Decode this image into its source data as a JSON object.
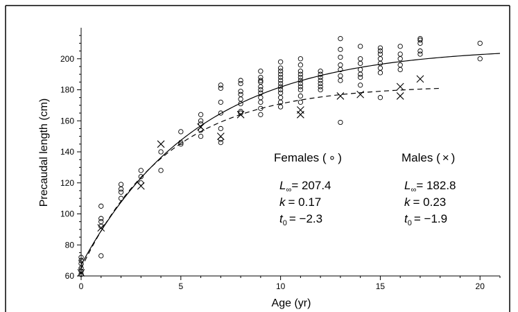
{
  "chart_data": {
    "type": "scatter",
    "xlabel": "Age (yr)",
    "ylabel": "Precaudal length (cm)",
    "xlim": [
      0,
      21
    ],
    "ylim": [
      60,
      220
    ],
    "x_ticks": [
      "0",
      "5",
      "10",
      "15",
      "20"
    ],
    "y_ticks": [
      "60",
      "80",
      "100",
      "120",
      "140",
      "160",
      "180",
      "200"
    ],
    "grid": false,
    "series": [
      {
        "name": "Females",
        "marker": "circle",
        "points": [
          [
            0,
            61
          ],
          [
            0,
            63
          ],
          [
            0,
            65
          ],
          [
            0,
            68
          ],
          [
            0,
            70
          ],
          [
            0,
            72
          ],
          [
            1,
            73
          ],
          [
            1,
            92
          ],
          [
            1,
            95
          ],
          [
            1,
            97
          ],
          [
            1,
            105
          ],
          [
            2,
            110
          ],
          [
            2,
            114
          ],
          [
            2,
            116
          ],
          [
            2,
            119
          ],
          [
            3,
            120
          ],
          [
            3,
            124
          ],
          [
            3,
            128
          ],
          [
            4,
            128
          ],
          [
            4,
            140
          ],
          [
            5,
            145
          ],
          [
            5,
            146
          ],
          [
            5,
            153
          ],
          [
            6,
            150
          ],
          [
            6,
            154
          ],
          [
            6,
            158
          ],
          [
            6,
            160
          ],
          [
            6,
            164
          ],
          [
            7,
            146
          ],
          [
            7,
            148
          ],
          [
            7,
            155
          ],
          [
            7,
            165
          ],
          [
            7,
            172
          ],
          [
            7,
            181
          ],
          [
            7,
            183
          ],
          [
            8,
            165
          ],
          [
            8,
            166
          ],
          [
            8,
            171
          ],
          [
            8,
            174
          ],
          [
            8,
            177
          ],
          [
            8,
            179
          ],
          [
            8,
            184
          ],
          [
            8,
            186
          ],
          [
            9,
            164
          ],
          [
            9,
            168
          ],
          [
            9,
            172
          ],
          [
            9,
            175
          ],
          [
            9,
            178
          ],
          [
            9,
            180
          ],
          [
            9,
            182
          ],
          [
            9,
            185
          ],
          [
            9,
            186
          ],
          [
            9,
            188
          ],
          [
            9,
            192
          ],
          [
            10,
            169
          ],
          [
            10,
            172
          ],
          [
            10,
            175
          ],
          [
            10,
            178
          ],
          [
            10,
            180
          ],
          [
            10,
            182
          ],
          [
            10,
            184
          ],
          [
            10,
            186
          ],
          [
            10,
            188
          ],
          [
            10,
            190
          ],
          [
            10,
            192
          ],
          [
            10,
            194
          ],
          [
            10,
            198
          ],
          [
            11,
            172
          ],
          [
            11,
            176
          ],
          [
            11,
            180
          ],
          [
            11,
            182
          ],
          [
            11,
            184
          ],
          [
            11,
            186
          ],
          [
            11,
            188
          ],
          [
            11,
            190
          ],
          [
            11,
            192
          ],
          [
            11,
            196
          ],
          [
            11,
            200
          ],
          [
            12,
            180
          ],
          [
            12,
            182
          ],
          [
            12,
            184
          ],
          [
            12,
            186
          ],
          [
            12,
            188
          ],
          [
            12,
            190
          ],
          [
            12,
            192
          ],
          [
            13,
            159
          ],
          [
            13,
            186
          ],
          [
            13,
            189
          ],
          [
            13,
            193
          ],
          [
            13,
            196
          ],
          [
            13,
            201
          ],
          [
            13,
            206
          ],
          [
            13,
            213
          ],
          [
            14,
            183
          ],
          [
            14,
            188
          ],
          [
            14,
            190
          ],
          [
            14,
            193
          ],
          [
            14,
            197
          ],
          [
            14,
            200
          ],
          [
            14,
            208
          ],
          [
            15,
            175
          ],
          [
            15,
            191
          ],
          [
            15,
            194
          ],
          [
            15,
            197
          ],
          [
            15,
            200
          ],
          [
            15,
            203
          ],
          [
            15,
            205
          ],
          [
            15,
            207
          ],
          [
            16,
            193
          ],
          [
            16,
            196
          ],
          [
            16,
            200
          ],
          [
            16,
            203
          ],
          [
            16,
            208
          ],
          [
            17,
            203
          ],
          [
            17,
            205
          ],
          [
            17,
            210
          ],
          [
            17,
            212
          ],
          [
            17,
            213
          ],
          [
            20,
            200
          ],
          [
            20,
            210
          ]
        ]
      },
      {
        "name": "Males",
        "marker": "cross",
        "points": [
          [
            0,
            62
          ],
          [
            1,
            91
          ],
          [
            3,
            118
          ],
          [
            4,
            145
          ],
          [
            6,
            156
          ],
          [
            7,
            150
          ],
          [
            8,
            164
          ],
          [
            11,
            164
          ],
          [
            11,
            167
          ],
          [
            13,
            176
          ],
          [
            14,
            177
          ],
          [
            16,
            176
          ],
          [
            16,
            182
          ],
          [
            17,
            187
          ]
        ]
      }
    ],
    "curves": [
      {
        "name": "Females",
        "style": "solid",
        "Linf": 207.4,
        "k": 0.17,
        "t0": -2.3,
        "x_range": [
          0,
          21
        ]
      },
      {
        "name": "Males",
        "style": "dashed",
        "Linf": 182.8,
        "k": 0.23,
        "t0": -1.9,
        "x_range": [
          0,
          18
        ]
      }
    ],
    "annotations": {
      "females": {
        "header": "Females (",
        "marker": "∘",
        "close": ")",
        "linf_symbol": "L",
        "linf_sub": "∞",
        "linf_value": "= 207.4",
        "k_symbol": "k",
        "k_value": "= 0.17",
        "t0_symbol": "t",
        "t0_sub": "0",
        "t0_value": "= −2.3"
      },
      "males": {
        "header": "Males (",
        "marker": "×",
        "close": ")",
        "linf_symbol": "L",
        "linf_sub": "∞",
        "linf_value": "= 182.8",
        "k_symbol": "k",
        "k_value": "= 0.23",
        "t0_symbol": "t",
        "t0_sub": "0",
        "t0_value": "= −1.9"
      }
    }
  }
}
